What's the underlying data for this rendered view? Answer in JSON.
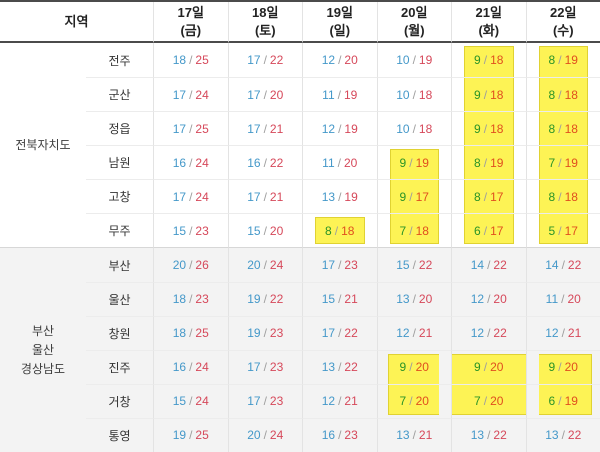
{
  "header": {
    "region_label": "지역",
    "dates": [
      {
        "day": "17일",
        "dow": "(금)"
      },
      {
        "day": "18일",
        "dow": "(토)"
      },
      {
        "day": "19일",
        "dow": "(일)"
      },
      {
        "day": "20일",
        "dow": "(월)"
      },
      {
        "day": "21일",
        "dow": "(화)"
      },
      {
        "day": "22일",
        "dow": "(수)"
      }
    ]
  },
  "value_separator": "/",
  "colors": {
    "low_temp": "#4498c9",
    "high_temp": "#d6485a",
    "highlight_low": "#2a9427",
    "highlight_high": "#e04f1e",
    "highlight_bg": "#fdf355",
    "south_section_bg": "#f3f3f3"
  },
  "groups": [
    {
      "name": "전북자치도",
      "rows": [
        {
          "name": "전주",
          "cells": [
            {
              "low": 18,
              "high": 25
            },
            {
              "low": 17,
              "high": 22
            },
            {
              "low": 12,
              "high": 20
            },
            {
              "low": 10,
              "high": 19
            },
            {
              "low": 9,
              "high": 18,
              "hl": "col"
            },
            {
              "low": 8,
              "high": 19,
              "hl": "col"
            }
          ]
        },
        {
          "name": "군산",
          "cells": [
            {
              "low": 17,
              "high": 24
            },
            {
              "low": 17,
              "high": 20
            },
            {
              "low": 11,
              "high": 19
            },
            {
              "low": 10,
              "high": 18
            },
            {
              "low": 9,
              "high": 18,
              "hl": "col"
            },
            {
              "low": 8,
              "high": 18,
              "hl": "col"
            }
          ]
        },
        {
          "name": "정읍",
          "cells": [
            {
              "low": 17,
              "high": 25
            },
            {
              "low": 17,
              "high": 21
            },
            {
              "low": 12,
              "high": 19
            },
            {
              "low": 10,
              "high": 18
            },
            {
              "low": 9,
              "high": 18,
              "hl": "col"
            },
            {
              "low": 8,
              "high": 18,
              "hl": "col"
            }
          ]
        },
        {
          "name": "남원",
          "cells": [
            {
              "low": 16,
              "high": 24
            },
            {
              "low": 16,
              "high": 22
            },
            {
              "low": 11,
              "high": 20
            },
            {
              "low": 9,
              "high": 19,
              "hl": "col"
            },
            {
              "low": 8,
              "high": 19,
              "hl": "col"
            },
            {
              "low": 7,
              "high": 19,
              "hl": "col"
            }
          ]
        },
        {
          "name": "고창",
          "cells": [
            {
              "low": 17,
              "high": 24
            },
            {
              "low": 17,
              "high": 21
            },
            {
              "low": 13,
              "high": 19
            },
            {
              "low": 9,
              "high": 17,
              "hl": "col"
            },
            {
              "low": 8,
              "high": 17,
              "hl": "col"
            },
            {
              "low": 8,
              "high": 18,
              "hl": "col"
            }
          ]
        },
        {
          "name": "무주",
          "cells": [
            {
              "low": 15,
              "high": 23
            },
            {
              "low": 15,
              "high": 20
            },
            {
              "low": 8,
              "high": 18,
              "hl": "col"
            },
            {
              "low": 7,
              "high": 18,
              "hl": "col"
            },
            {
              "low": 6,
              "high": 17,
              "hl": "col"
            },
            {
              "low": 5,
              "high": 17,
              "hl": "col"
            }
          ]
        }
      ]
    },
    {
      "name": "부산\n울산\n경상남도",
      "rows": [
        {
          "name": "부산",
          "cells": [
            {
              "low": 20,
              "high": 26
            },
            {
              "low": 20,
              "high": 24
            },
            {
              "low": 17,
              "high": 23
            },
            {
              "low": 15,
              "high": 22
            },
            {
              "low": 14,
              "high": 22
            },
            {
              "low": 14,
              "high": 22
            }
          ]
        },
        {
          "name": "울산",
          "cells": [
            {
              "low": 18,
              "high": 23
            },
            {
              "low": 19,
              "high": 22
            },
            {
              "low": 15,
              "high": 21
            },
            {
              "low": 13,
              "high": 20
            },
            {
              "low": 12,
              "high": 20
            },
            {
              "low": 11,
              "high": 20
            }
          ]
        },
        {
          "name": "창원",
          "cells": [
            {
              "low": 18,
              "high": 25
            },
            {
              "low": 19,
              "high": 23
            },
            {
              "low": 17,
              "high": 22
            },
            {
              "low": 12,
              "high": 21
            },
            {
              "low": 12,
              "high": 22
            },
            {
              "low": 12,
              "high": 21
            }
          ]
        },
        {
          "name": "진주",
          "cells": [
            {
              "low": 16,
              "high": 24
            },
            {
              "low": 17,
              "high": 23
            },
            {
              "low": 13,
              "high": 22
            },
            {
              "low": 9,
              "high": 20,
              "hl": "bleft"
            },
            {
              "low": 9,
              "high": 20,
              "hl": "bmid"
            },
            {
              "low": 9,
              "high": 20,
              "hl": "bright"
            }
          ]
        },
        {
          "name": "거창",
          "cells": [
            {
              "low": 15,
              "high": 24
            },
            {
              "low": 17,
              "high": 23
            },
            {
              "low": 12,
              "high": 21
            },
            {
              "low": 7,
              "high": 20,
              "hl": "bleft"
            },
            {
              "low": 7,
              "high": 20,
              "hl": "bmid"
            },
            {
              "low": 6,
              "high": 19,
              "hl": "bright"
            }
          ]
        },
        {
          "name": "통영",
          "cells": [
            {
              "low": 19,
              "high": 25
            },
            {
              "low": 20,
              "high": 24
            },
            {
              "low": 16,
              "high": 23
            },
            {
              "low": 13,
              "high": 21
            },
            {
              "low": 13,
              "high": 22
            },
            {
              "low": 13,
              "high": 22
            }
          ]
        }
      ]
    }
  ]
}
